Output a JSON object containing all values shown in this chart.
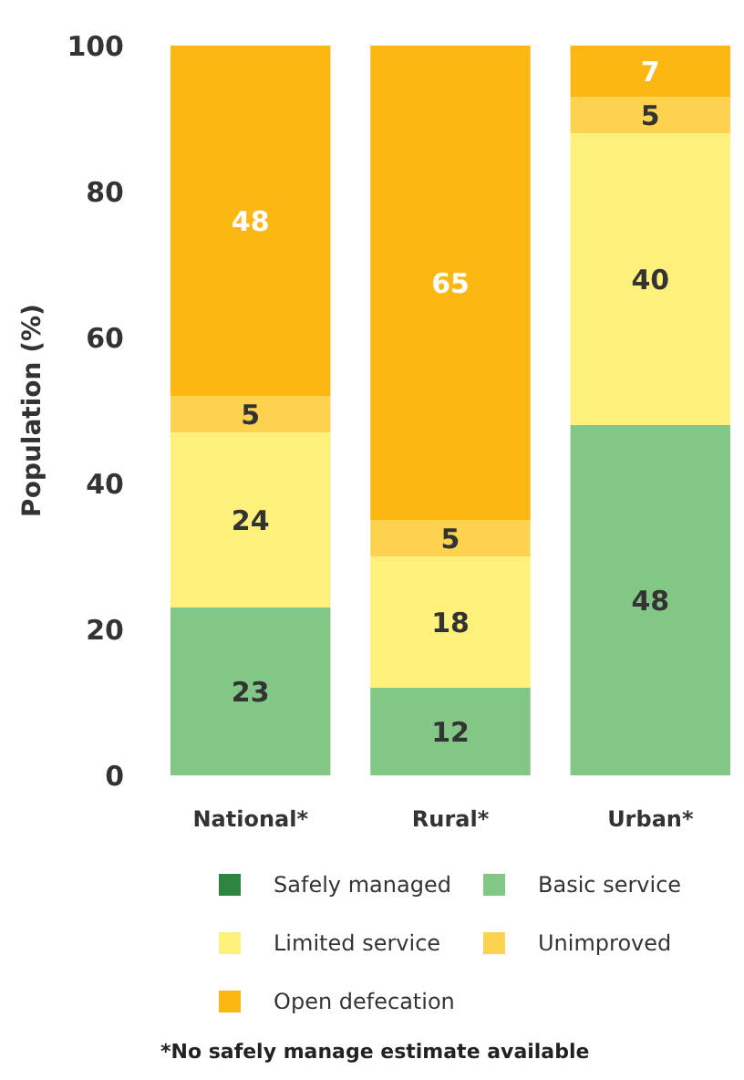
{
  "chart_data": {
    "type": "bar",
    "stacked": true,
    "ylabel": "Population (%)",
    "categories": [
      "National*",
      "Rural*",
      "Urban*"
    ],
    "series": [
      {
        "name": "Safely managed",
        "color": "#2e8540",
        "values": [
          null,
          null,
          null
        ]
      },
      {
        "name": "Basic service",
        "color": "#82c786",
        "values": [
          23,
          12,
          48
        ]
      },
      {
        "name": "Limited service",
        "color": "#fdf17c",
        "values": [
          24,
          18,
          40
        ]
      },
      {
        "name": "Unimproved",
        "color": "#fdd24e",
        "values": [
          5,
          5,
          5
        ]
      },
      {
        "name": "Open defecation",
        "color": "#fbb813",
        "values": [
          48,
          65,
          7
        ]
      }
    ],
    "ylim": [
      0,
      100
    ],
    "yticks": [
      0,
      20,
      40,
      60,
      80,
      100
    ],
    "grid": false,
    "legend": "bottom",
    "data_labels": true,
    "annotations": [
      "*No safely manage estimate available"
    ]
  }
}
